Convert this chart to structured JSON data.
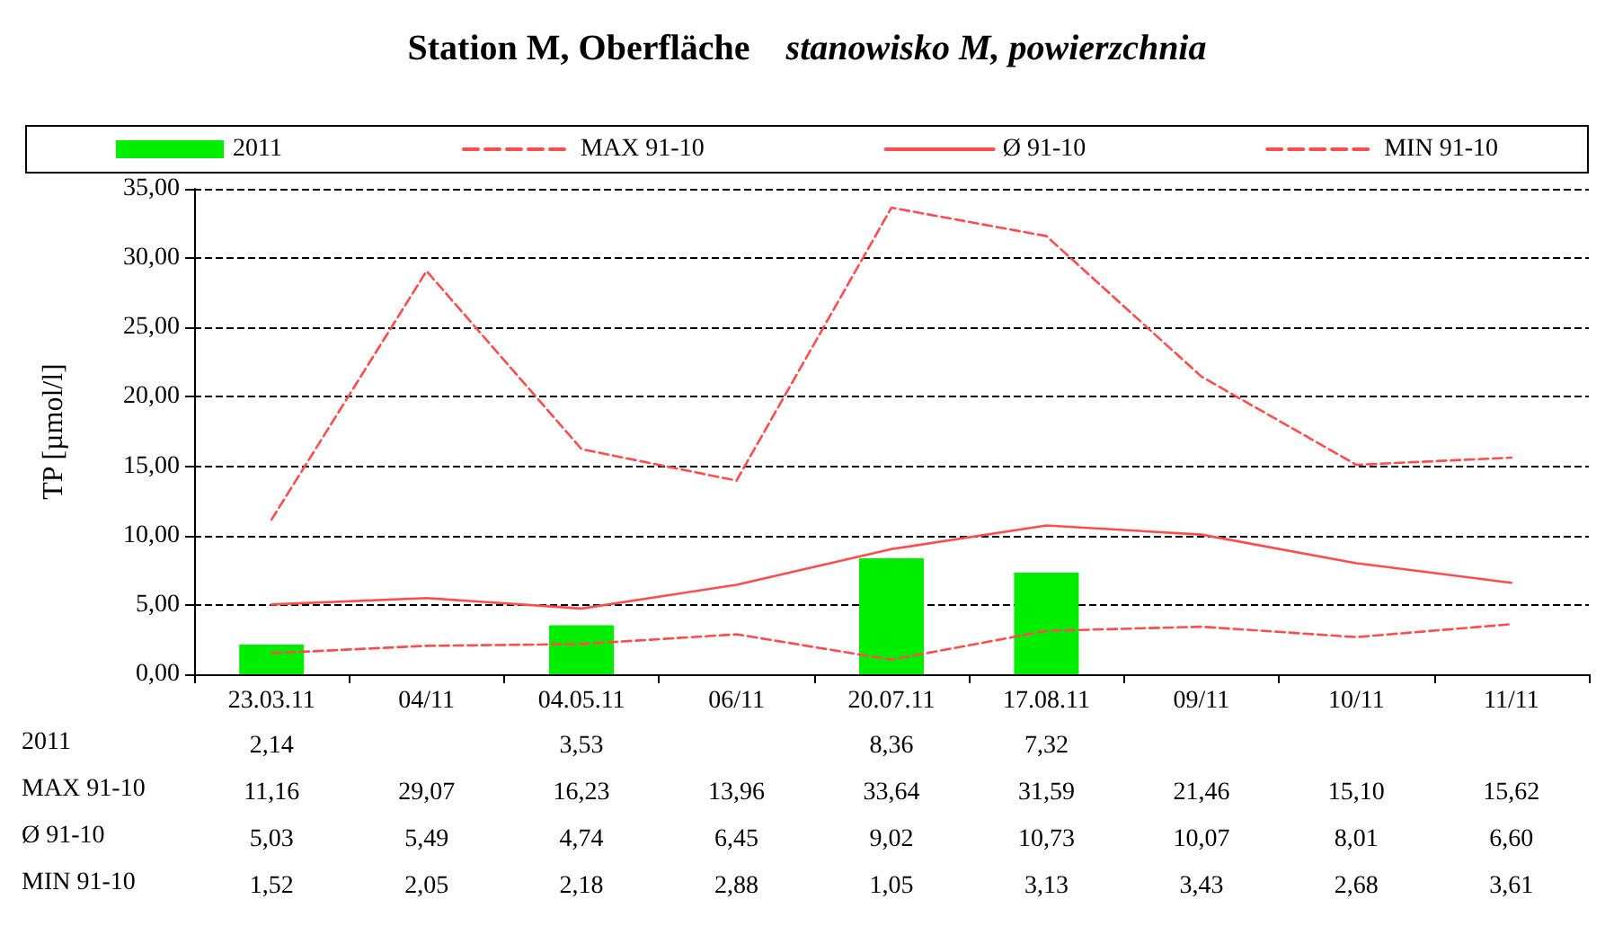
{
  "chart_data": {
    "type": "line",
    "title": "Station M, Oberfläche",
    "subtitle": "stanowisko M, powierzchnia",
    "ylabel": "TP [µmol/l]",
    "categories": [
      "23.03.11",
      "04/11",
      "04.05.11",
      "06/11",
      "20.07.11",
      "17.08.11",
      "09/11",
      "10/11",
      "11/11"
    ],
    "ylim": [
      0,
      35
    ],
    "yticks": [
      {
        "value": 0,
        "label": "0,00"
      },
      {
        "value": 5,
        "label": "5,00"
      },
      {
        "value": 10,
        "label": "10,00"
      },
      {
        "value": 15,
        "label": "15,00"
      },
      {
        "value": 20,
        "label": "20,00"
      },
      {
        "value": 25,
        "label": "25,00"
      },
      {
        "value": 30,
        "label": "30,00"
      },
      {
        "value": 35,
        "label": "35,00"
      }
    ],
    "grid": "y",
    "legend": "top",
    "marker": "none",
    "series": [
      {
        "name": "2011",
        "type": "bar",
        "color": "#00ee00",
        "values": [
          2.14,
          null,
          3.53,
          null,
          8.36,
          7.32,
          null,
          null,
          null
        ],
        "value_labels": [
          "2,14",
          null,
          "3,53",
          null,
          "8,36",
          "7,32",
          null,
          null,
          null
        ]
      },
      {
        "name": "MAX 91-10",
        "line_style": "dashed",
        "color": "#ff4d4d",
        "values": [
          11.16,
          29.07,
          16.23,
          13.96,
          33.64,
          31.59,
          21.46,
          15.1,
          15.62
        ],
        "value_labels": [
          "11,16",
          "29,07",
          "16,23",
          "13,96",
          "33,64",
          "31,59",
          "21,46",
          "15,10",
          "15,62"
        ]
      },
      {
        "name": "Ø 91-10",
        "line_style": "solid",
        "color": "#ff4d4d",
        "values": [
          5.03,
          5.49,
          4.74,
          6.45,
          9.02,
          10.73,
          10.07,
          8.01,
          6.6
        ],
        "value_labels": [
          "5,03",
          "5,49",
          "4,74",
          "6,45",
          "9,02",
          "10,73",
          "10,07",
          "8,01",
          "6,60"
        ]
      },
      {
        "name": "MIN 91-10",
        "line_style": "dashed",
        "color": "#ff4d4d",
        "values": [
          1.52,
          2.05,
          2.18,
          2.88,
          1.05,
          3.13,
          3.43,
          2.68,
          3.61
        ],
        "value_labels": [
          "1,52",
          "2,05",
          "2,18",
          "2,88",
          "1,05",
          "3,13",
          "3,43",
          "2,68",
          "3,61"
        ]
      }
    ]
  }
}
